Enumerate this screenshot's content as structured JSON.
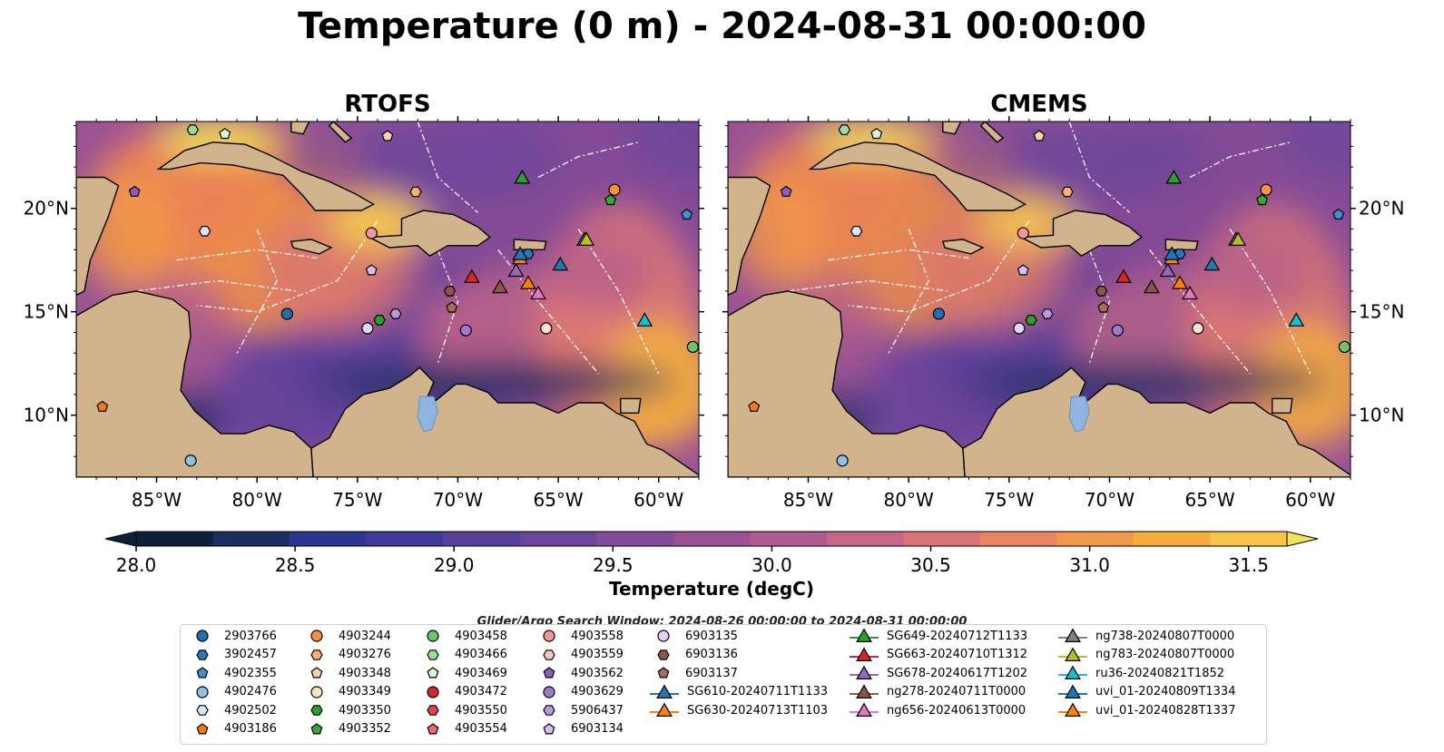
{
  "title": "Temperature (0 m) - 2024-08-31 00:00:00",
  "panels": [
    {
      "title": "RTOFS"
    },
    {
      "title": "CMEMS"
    }
  ],
  "axes": {
    "lon_ticks": [
      "85°W",
      "80°W",
      "75°W",
      "70°W",
      "65°W",
      "60°W"
    ],
    "lat_ticks": [
      "20°N",
      "15°N",
      "10°N"
    ],
    "lon_range": [
      -89,
      -58
    ],
    "lat_range": [
      7,
      24.2
    ]
  },
  "colorbar": {
    "label": "Temperature (degC)",
    "ticks": [
      "28.0",
      "28.5",
      "29.0",
      "29.5",
      "30.0",
      "30.5",
      "31.0",
      "31.5"
    ],
    "range": [
      28.0,
      31.75
    ],
    "colors": [
      "#0e2038",
      "#1a2f60",
      "#2d368e",
      "#40399a",
      "#55409c",
      "#6a469a",
      "#824c98",
      "#9a5295",
      "#b05b90",
      "#c6668a",
      "#da7478",
      "#ea8562",
      "#f2984a",
      "#f6ad3c",
      "#f7c54a",
      "#f2e45a"
    ]
  },
  "legend": {
    "caption": "Glider/Argo Search Window: 2024-08-26 00:00:00 to 2024-08-31 00:00:00",
    "columns": [
      [
        {
          "label": "2903766",
          "marker": "circle",
          "color": "#1f6fb5"
        },
        {
          "label": "3902457",
          "marker": "hexagon",
          "color": "#2878be"
        },
        {
          "label": "4902355",
          "marker": "pentagon",
          "color": "#3f8fd2"
        },
        {
          "label": "4902476",
          "marker": "circle",
          "color": "#8fc0e8"
        },
        {
          "label": "4902502",
          "marker": "hexagon",
          "color": "#d4e9fa"
        },
        {
          "label": "4903186",
          "marker": "pentagon",
          "color": "#f27a10"
        }
      ],
      [
        {
          "label": "4903244",
          "marker": "circle",
          "color": "#f7913a"
        },
        {
          "label": "4903276",
          "marker": "hexagon",
          "color": "#f9b070"
        },
        {
          "label": "4903348",
          "marker": "pentagon",
          "color": "#fcd3a8"
        },
        {
          "label": "4903349",
          "marker": "circle",
          "color": "#fde3c8"
        },
        {
          "label": "4903350",
          "marker": "hexagon",
          "color": "#2ca02c"
        },
        {
          "label": "4903352",
          "marker": "pentagon",
          "color": "#38a838"
        }
      ],
      [
        {
          "label": "4903458",
          "marker": "circle",
          "color": "#6cc46c"
        },
        {
          "label": "4903466",
          "marker": "hexagon",
          "color": "#98de98"
        },
        {
          "label": "4903469",
          "marker": "pentagon",
          "color": "#d8f5d0"
        },
        {
          "label": "4903472",
          "marker": "circle",
          "color": "#d62728"
        },
        {
          "label": "4903550",
          "marker": "hexagon",
          "color": "#e04448"
        },
        {
          "label": "4903554",
          "marker": "pentagon",
          "color": "#ec6a6e"
        }
      ],
      [
        {
          "label": "4903558",
          "marker": "circle",
          "color": "#f29898"
        },
        {
          "label": "4903559",
          "marker": "hexagon",
          "color": "#fbc4c4"
        },
        {
          "label": "4903562",
          "marker": "pentagon",
          "color": "#8e5cc0"
        },
        {
          "label": "4903629",
          "marker": "circle",
          "color": "#a07ad0"
        },
        {
          "label": "5906437",
          "marker": "hexagon",
          "color": "#b898de"
        },
        {
          "label": "6903134",
          "marker": "pentagon",
          "color": "#d3c0ee"
        }
      ],
      [
        {
          "label": "6903135",
          "marker": "circle",
          "color": "#e2d2f5"
        },
        {
          "label": "6903136",
          "marker": "hexagon",
          "color": "#8c564b"
        },
        {
          "label": "6903137",
          "marker": "pentagon",
          "color": "#a86a5c"
        },
        {
          "label": "SG610-20240711T1133",
          "marker": "triangle-line",
          "color": "#1f77b4"
        },
        {
          "label": "SG630-20240713T1103",
          "marker": "triangle-line",
          "color": "#ff7f0e"
        }
      ],
      [
        {
          "label": "SG649-20240712T1133",
          "marker": "triangle-line",
          "color": "#2ca02c"
        },
        {
          "label": "SG663-20240710T1312",
          "marker": "triangle-line",
          "color": "#d62728"
        },
        {
          "label": "SG678-20240617T1202",
          "marker": "triangle-line",
          "color": "#9467bd"
        },
        {
          "label": "ng278-20240711T0000",
          "marker": "triangle-line",
          "color": "#8c564b"
        },
        {
          "label": "ng656-20240613T0000",
          "marker": "triangle-line",
          "color": "#e377c2"
        }
      ],
      [
        {
          "label": "ng738-20240807T0000",
          "marker": "triangle-line",
          "color": "#7f7f7f"
        },
        {
          "label": "ng783-20240807T0000",
          "marker": "triangle-line",
          "color": "#bcbd22"
        },
        {
          "label": "ru36-20240821T1852",
          "marker": "triangle-line",
          "color": "#17becf"
        },
        {
          "label": "uvi_01-20240809T1334",
          "marker": "triangle-line",
          "color": "#1f77b4"
        },
        {
          "label": "uvi_01-20240828T1337",
          "marker": "triangle-line",
          "color": "#ff7f0e"
        }
      ]
    ]
  },
  "observations": [
    {
      "id": "2903766",
      "lon": -78.5,
      "lat": 14.9
    },
    {
      "id": "4902476",
      "lon": -83.3,
      "lat": 7.8
    },
    {
      "id": "4903186",
      "lon": -87.7,
      "lat": 10.4
    },
    {
      "id": "4903244",
      "lon": -62.2,
      "lat": 20.9
    },
    {
      "id": "4903276",
      "lon": -72.1,
      "lat": 20.8
    },
    {
      "id": "4903348",
      "lon": -73.5,
      "lat": 23.5
    },
    {
      "id": "4903349",
      "lon": -65.6,
      "lat": 14.2
    },
    {
      "id": "4903350",
      "lon": -73.9,
      "lat": 14.6
    },
    {
      "id": "4903352",
      "lon": -62.4,
      "lat": 20.4
    },
    {
      "id": "4903458",
      "lon": -58.3,
      "lat": 13.3
    },
    {
      "id": "4903466",
      "lon": -83.2,
      "lat": 23.8
    },
    {
      "id": "4903469",
      "lon": -81.6,
      "lat": 23.6
    },
    {
      "id": "4903558",
      "lon": -74.3,
      "lat": 18.8
    },
    {
      "id": "4903562",
      "lon": -86.1,
      "lat": 20.8
    },
    {
      "id": "4903629",
      "lon": -69.6,
      "lat": 14.1
    },
    {
      "id": "5906437",
      "lon": -73.1,
      "lat": 14.9
    },
    {
      "id": "6903134",
      "lon": -74.3,
      "lat": 17.0
    },
    {
      "id": "6903135",
      "lon": -74.5,
      "lat": 14.2
    },
    {
      "id": "6903136",
      "lon": -70.4,
      "lat": 16.0
    },
    {
      "id": "6903137",
      "lon": -70.3,
      "lat": 15.2
    },
    {
      "id": "3902457",
      "lon": -66.5,
      "lat": 17.8
    },
    {
      "id": "4902355",
      "lon": -58.6,
      "lat": 19.7
    },
    {
      "id": "4902502",
      "lon": -82.6,
      "lat": 18.9
    }
  ],
  "gliders": [
    {
      "id": "SG649-20240712T1133",
      "lon": -66.8,
      "lat": 21.5
    },
    {
      "id": "SG663-20240710T1312",
      "lon": -69.3,
      "lat": 16.7
    },
    {
      "id": "SG678-20240617T1202",
      "lon": -67.1,
      "lat": 17.0
    },
    {
      "id": "ng278-20240711T0000",
      "lon": -67.9,
      "lat": 16.2
    },
    {
      "id": "ng656-20240613T0000",
      "lon": -66.0,
      "lat": 15.9
    },
    {
      "id": "ng738-20240807T0000",
      "lon": -63.7,
      "lat": 18.5
    },
    {
      "id": "ng783-20240807T0000",
      "lon": -63.6,
      "lat": 18.5
    },
    {
      "id": "ru36-20240821T1852",
      "lon": -60.7,
      "lat": 14.6
    },
    {
      "id": "uvi_01-20240809T1334",
      "lon": -64.9,
      "lat": 17.3
    },
    {
      "id": "uvi_01-20240828T1337",
      "lon": -66.9,
      "lat": 17.6
    },
    {
      "id": "SG630-20240713T1103",
      "lon": -66.5,
      "lat": 16.4
    },
    {
      "id": "SG610-20240711T1133",
      "lon": -66.9,
      "lat": 17.8
    }
  ]
}
